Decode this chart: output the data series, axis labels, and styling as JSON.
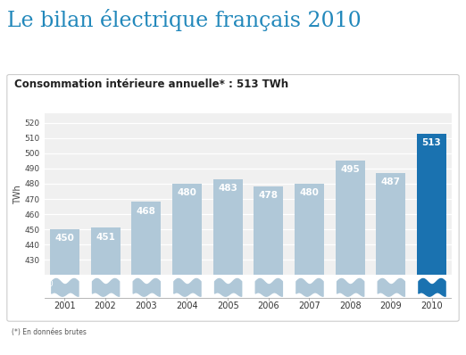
{
  "title": "Le bilan électrique français 2010",
  "subtitle": "Consommation intérieure annuelle* : 513 TWh",
  "ylabel": "TWh",
  "footnote": "(*) En données brutes",
  "years": [
    "2001",
    "2002",
    "2003",
    "2004",
    "2005",
    "2006",
    "2007",
    "2008",
    "2009",
    "2010"
  ],
  "values": [
    450,
    451,
    468,
    480,
    483,
    478,
    480,
    495,
    487,
    513
  ],
  "bar_colors": [
    "#b0c8d8",
    "#b0c8d8",
    "#b0c8d8",
    "#b0c8d8",
    "#b0c8d8",
    "#b0c8d8",
    "#b0c8d8",
    "#b0c8d8",
    "#b0c8d8",
    "#1a72b0"
  ],
  "title_color": "#2288bb",
  "subtitle_color": "#222222",
  "ylim_min": 420,
  "ylim_max": 526,
  "yticks": [
    430,
    440,
    450,
    460,
    470,
    480,
    490,
    500,
    510,
    520
  ],
  "chart_bg": "#f0f0f0",
  "outer_bg": "#ffffff",
  "border_color": "#cccccc",
  "grid_color": "#ffffff",
  "dark_strip_color": "#1a1a2a",
  "wave_color_normal": "#b0c8d8",
  "wave_color_highlight": "#1a72b0"
}
